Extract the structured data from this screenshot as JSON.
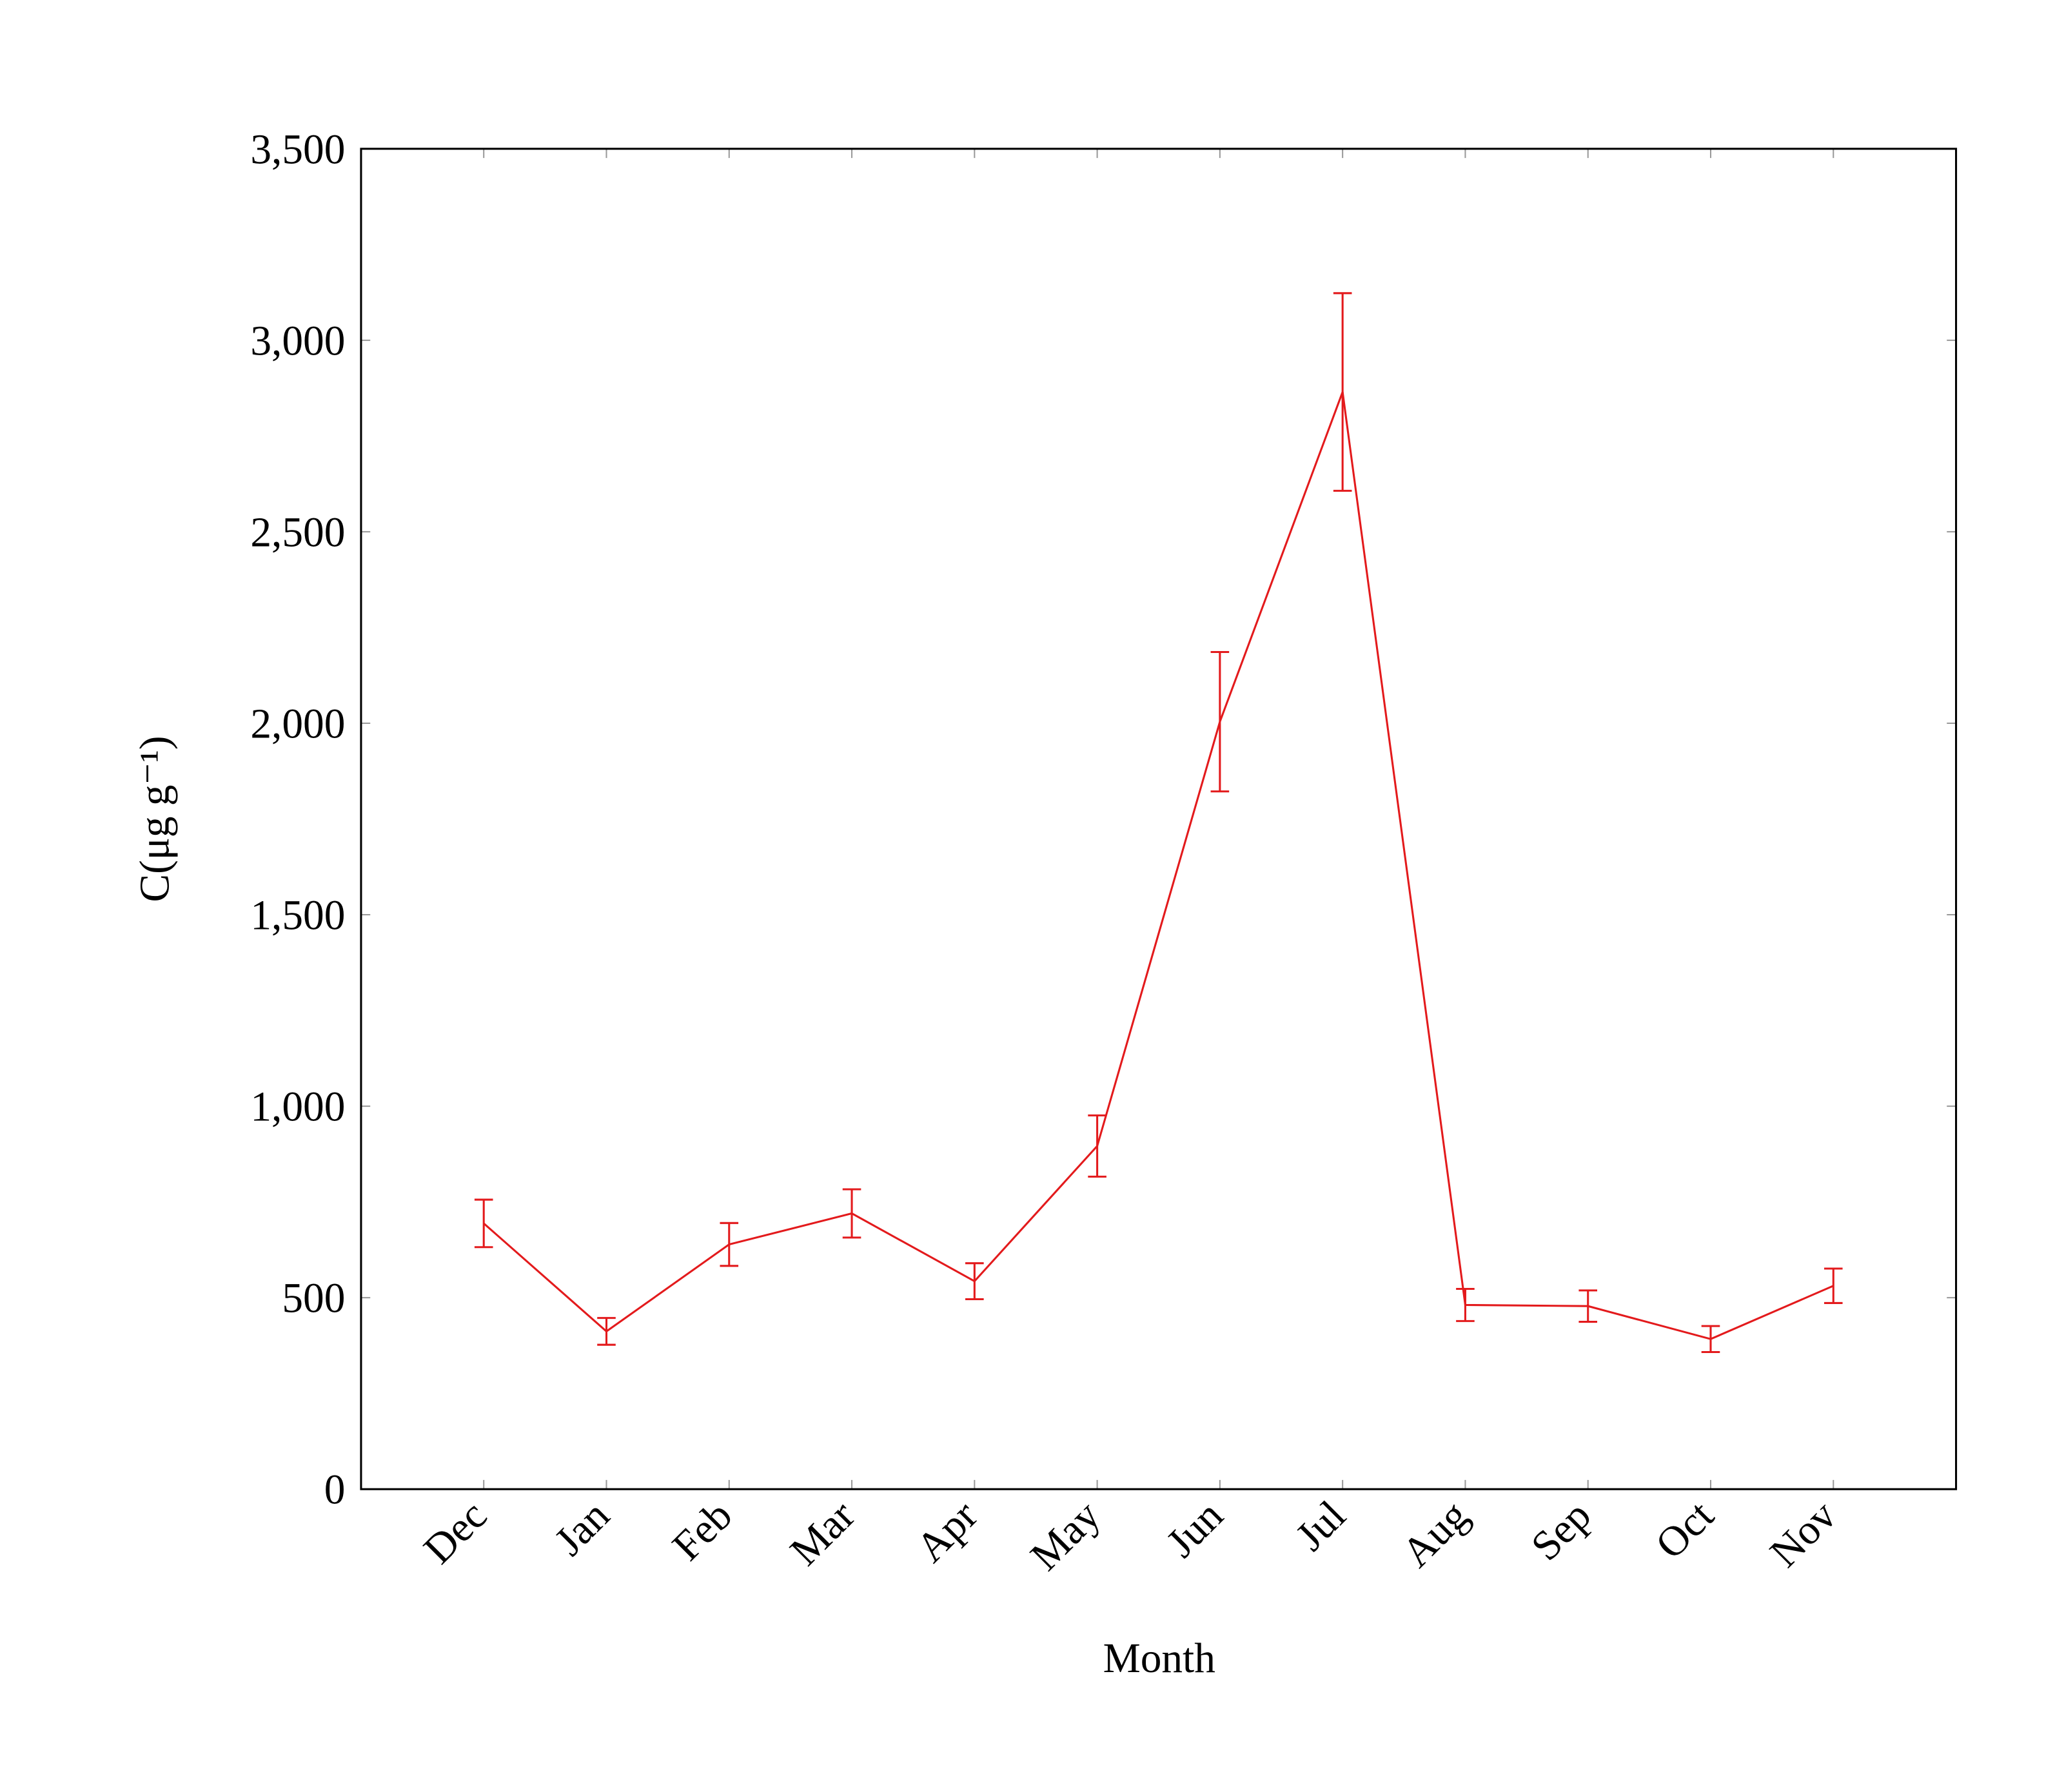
{
  "chart_data": {
    "type": "line",
    "xlabel": "Month",
    "ylabel": "C(μg g⁻¹)",
    "categories": [
      "Dec",
      "Jan",
      "Feb",
      "Mar",
      "Apr",
      "May",
      "Jun",
      "Jul",
      "Aug",
      "Sep",
      "Oct",
      "Nov"
    ],
    "series": [
      {
        "color": "#e31a1c",
        "values": [
          694,
          412,
          639,
          720,
          543,
          896,
          2004,
          2865,
          481,
          478,
          392,
          531
        ],
        "errors": [
          62,
          35,
          56,
          63,
          47,
          80,
          182,
          258,
          42,
          41,
          34,
          45
        ]
      }
    ],
    "ylim": [
      0,
      3500
    ],
    "yticks": [
      0,
      500,
      {
        "value": 1000,
        "label": "1,000"
      },
      {
        "value": 1500,
        "label": "1,500"
      },
      {
        "value": 2000,
        "label": "2,000"
      },
      {
        "value": 2500,
        "label": "2,500"
      },
      {
        "value": 3000,
        "label": "3,000"
      },
      {
        "value": 3500,
        "label": "3,500"
      }
    ]
  }
}
